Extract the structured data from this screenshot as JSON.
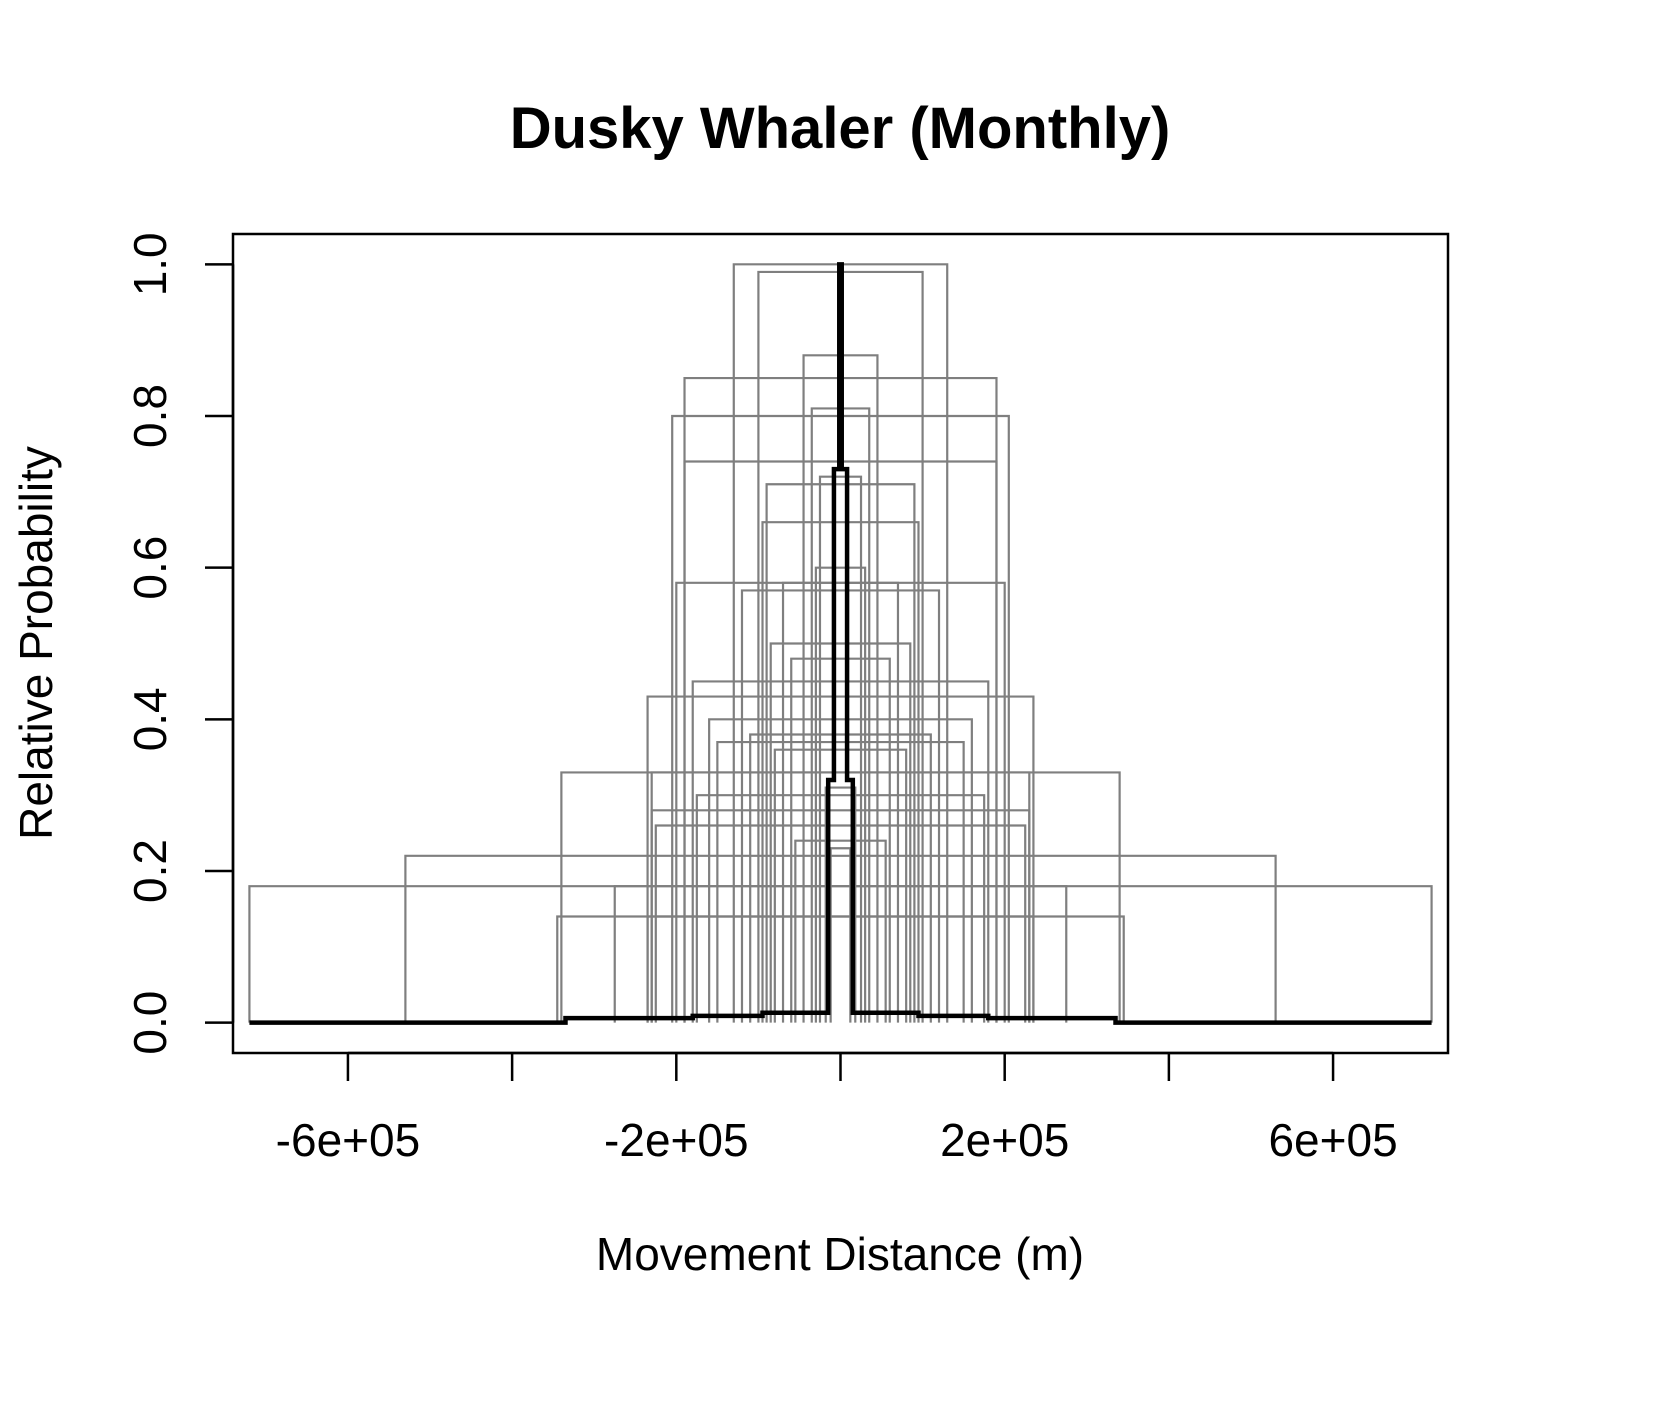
{
  "chart_data": {
    "type": "line",
    "title": "Dusky Whaler (Monthly)",
    "xlabel": "Movement Distance (m)",
    "ylabel": "Relative Probability",
    "xlim": [
      -740000,
      740000
    ],
    "ylim": [
      -0.04,
      1.04
    ],
    "grid": false,
    "x_ticks": [
      -600000,
      -400000,
      -200000,
      0,
      200000,
      400000,
      600000
    ],
    "x_tick_labels": [
      {
        "value": -600000,
        "label": "-6e+05"
      },
      {
        "value": -200000,
        "label": "-2e+05"
      },
      {
        "value": 200000,
        "label": "2e+05"
      },
      {
        "value": 600000,
        "label": "6e+05"
      }
    ],
    "y_ticks": [
      0.0,
      0.2,
      0.4,
      0.6,
      0.8,
      1.0
    ],
    "y_tick_labels": [
      "0.0",
      "0.2",
      "0.4",
      "0.6",
      "0.8",
      "1.0"
    ],
    "colors": {
      "individual": "#7f7f7f",
      "mean": "#000000",
      "axis": "#000000"
    },
    "series_individual": [
      {
        "half_width": 720000,
        "height": 0.18
      },
      {
        "half_width": 530000,
        "height": 0.22
      },
      {
        "half_width": 340000,
        "height": 0.33
      },
      {
        "half_width": 345000,
        "height": 0.14
      },
      {
        "half_width": 275000,
        "height": 0.18
      },
      {
        "half_width": 235000,
        "height": 0.43
      },
      {
        "half_width": 230000,
        "height": 0.33
      },
      {
        "half_width": 230000,
        "height": 0.28
      },
      {
        "half_width": 235000,
        "height": 0.14
      },
      {
        "half_width": 225000,
        "height": 0.26
      },
      {
        "half_width": 190000,
        "height": 0.85
      },
      {
        "half_width": 205000,
        "height": 0.8
      },
      {
        "half_width": 190000,
        "height": 0.74
      },
      {
        "half_width": 200000,
        "height": 0.58
      },
      {
        "half_width": 180000,
        "height": 0.45
      },
      {
        "half_width": 175000,
        "height": 0.3
      },
      {
        "half_width": 160000,
        "height": 0.4
      },
      {
        "half_width": 150000,
        "height": 0.37
      },
      {
        "half_width": 130000,
        "height": 1.0
      },
      {
        "half_width": 120000,
        "height": 0.57
      },
      {
        "half_width": 110000,
        "height": 0.38
      },
      {
        "half_width": 100000,
        "height": 0.99
      },
      {
        "half_width": 95000,
        "height": 0.66
      },
      {
        "half_width": 90000,
        "height": 0.71
      },
      {
        "half_width": 85000,
        "height": 0.5
      },
      {
        "half_width": 80000,
        "height": 0.36
      },
      {
        "half_width": 70000,
        "height": 0.58
      },
      {
        "half_width": 60000,
        "height": 0.48
      },
      {
        "half_width": 55000,
        "height": 0.24
      },
      {
        "half_width": 45000,
        "height": 0.88
      },
      {
        "half_width": 35000,
        "height": 0.81
      },
      {
        "half_width": 30000,
        "height": 0.6
      },
      {
        "half_width": 25000,
        "height": 0.72
      },
      {
        "half_width": 18000,
        "height": 0.31
      },
      {
        "half_width": 12000,
        "height": 0.23
      }
    ],
    "series_mean": {
      "x": [
        -720000,
        -335000,
        -335000,
        -180000,
        -180000,
        -95000,
        -95000,
        -15000,
        -15000,
        -8000,
        -8000,
        -1500,
        -1500,
        1500,
        1500,
        8000,
        8000,
        15000,
        15000,
        95000,
        95000,
        180000,
        180000,
        335000,
        335000,
        720000
      ],
      "y": [
        0.0,
        0.0,
        0.006,
        0.006,
        0.009,
        0.009,
        0.013,
        0.013,
        0.32,
        0.32,
        0.73,
        0.73,
        1.0,
        1.0,
        0.73,
        0.73,
        0.32,
        0.32,
        0.013,
        0.013,
        0.009,
        0.009,
        0.006,
        0.006,
        0.0,
        0.0
      ]
    }
  }
}
